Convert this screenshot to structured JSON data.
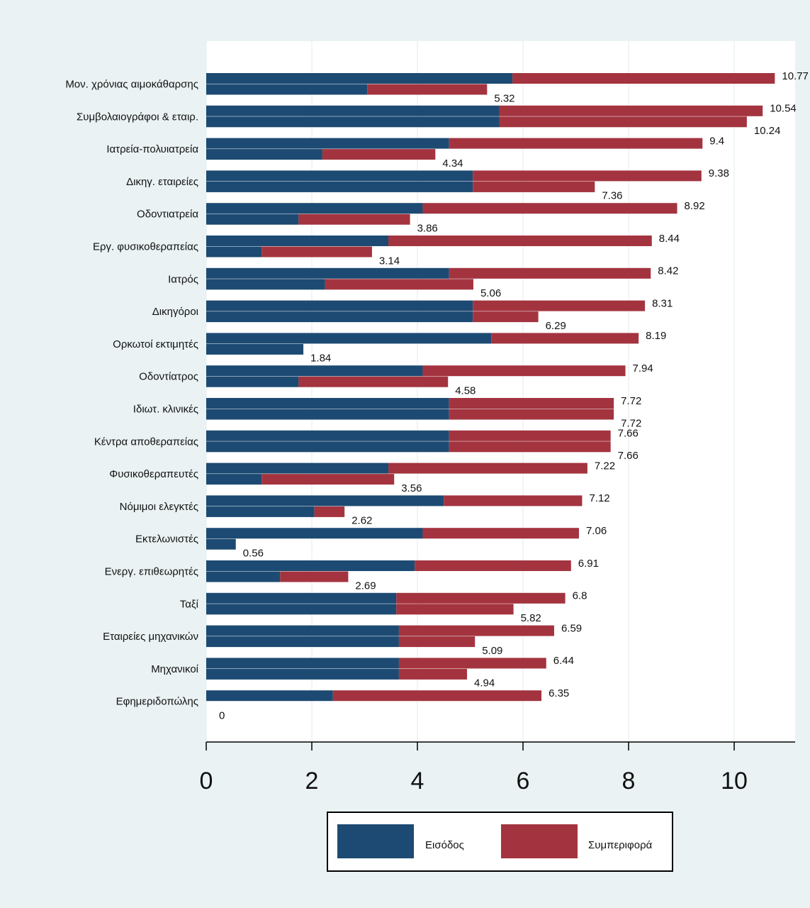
{
  "chart_data": {
    "type": "bar",
    "orientation": "horizontal",
    "grid": "vertical",
    "legend_position": "bottom",
    "xlim": [
      0,
      11
    ],
    "xticks": [
      0,
      2,
      4,
      6,
      8,
      10
    ],
    "categories": [
      "Μον. χρόνιας αιμοκάθαρσης",
      "Συμβολαιογράφοι & εταιρ.",
      "Ιατρεία-πολυιατρεία",
      "Δικηγ. εταιρείες",
      "Οδοντιατρεία",
      "Εργ. φυσικοθεραπείας",
      "Ιατρός",
      "Δικηγόροι",
      "Ορκωτοί εκτιμητές",
      "Οδοντίατρος",
      "Ιδιωτ. κλινικές",
      "Κέντρα αποθεραπείας",
      "Φυσικοθεραπευτές",
      "Νόμιμοι ελεγκτές",
      "Εκτελωνιστές",
      "Ενεργ. επιθεωρητές",
      "Ταξί",
      "Εταιρείες μηχανικών",
      "Μηχανικοί",
      "Εφημεριδοπώλης"
    ],
    "rows": [
      {
        "top": {
          "income": 5.8,
          "total": 10.77
        },
        "bottom": {
          "income": 3.05,
          "total": 5.32
        }
      },
      {
        "top": {
          "income": 5.55,
          "total": 10.54
        },
        "bottom": {
          "income": 5.55,
          "total": 10.24
        }
      },
      {
        "top": {
          "income": 4.6,
          "total": 9.4
        },
        "bottom": {
          "income": 2.2,
          "total": 4.34
        }
      },
      {
        "top": {
          "income": 5.05,
          "total": 9.38
        },
        "bottom": {
          "income": 5.05,
          "total": 7.36
        }
      },
      {
        "top": {
          "income": 4.1,
          "total": 8.92
        },
        "bottom": {
          "income": 1.75,
          "total": 3.86
        }
      },
      {
        "top": {
          "income": 3.45,
          "total": 8.44
        },
        "bottom": {
          "income": 1.05,
          "total": 3.14
        }
      },
      {
        "top": {
          "income": 4.6,
          "total": 8.42
        },
        "bottom": {
          "income": 2.25,
          "total": 5.06
        }
      },
      {
        "top": {
          "income": 5.05,
          "total": 8.31
        },
        "bottom": {
          "income": 5.05,
          "total": 6.29
        }
      },
      {
        "top": {
          "income": 5.4,
          "total": 8.19
        },
        "bottom": {
          "income": 1.84,
          "total": 1.84
        }
      },
      {
        "top": {
          "income": 4.1,
          "total": 7.94
        },
        "bottom": {
          "income": 1.75,
          "total": 4.58
        }
      },
      {
        "top": {
          "income": 4.6,
          "total": 7.72
        },
        "bottom": {
          "income": 4.6,
          "total": 7.72
        }
      },
      {
        "top": {
          "income": 4.6,
          "total": 7.66
        },
        "bottom": {
          "income": 4.6,
          "total": 7.66
        }
      },
      {
        "top": {
          "income": 3.45,
          "total": 7.22
        },
        "bottom": {
          "income": 1.05,
          "total": 3.56
        }
      },
      {
        "top": {
          "income": 4.5,
          "total": 7.12
        },
        "bottom": {
          "income": 2.05,
          "total": 2.62
        }
      },
      {
        "top": {
          "income": 4.1,
          "total": 7.06
        },
        "bottom": {
          "income": 0.56,
          "total": 0.56
        }
      },
      {
        "top": {
          "income": 3.95,
          "total": 6.91
        },
        "bottom": {
          "income": 1.4,
          "total": 2.69
        }
      },
      {
        "top": {
          "income": 3.6,
          "total": 6.8
        },
        "bottom": {
          "income": 3.6,
          "total": 5.82
        }
      },
      {
        "top": {
          "income": 3.65,
          "total": 6.59
        },
        "bottom": {
          "income": 3.65,
          "total": 5.09
        }
      },
      {
        "top": {
          "income": 3.65,
          "total": 6.44
        },
        "bottom": {
          "income": 3.65,
          "total": 4.94
        }
      },
      {
        "top": {
          "income": 2.4,
          "total": 6.35
        },
        "bottom": {
          "income": 0,
          "total": 0
        }
      }
    ],
    "series": [
      {
        "name": "Εισόδος",
        "color": "#1d4a72"
      },
      {
        "name": "Συμπεριφορά",
        "color": "#a3343f"
      }
    ]
  }
}
